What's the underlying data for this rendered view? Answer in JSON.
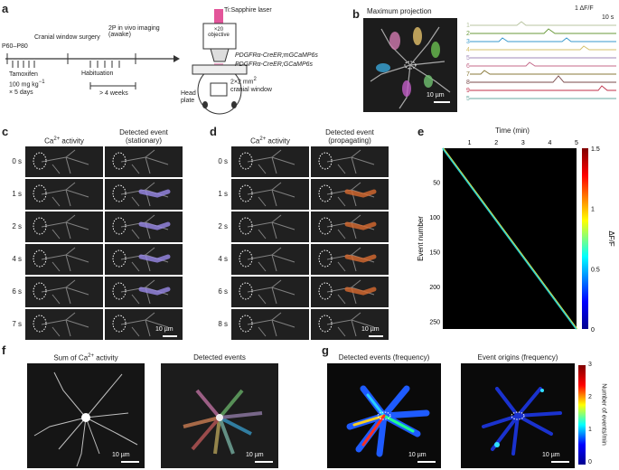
{
  "panels": {
    "a": {
      "label": "a",
      "age": "P60–P80",
      "surgery": "Cranial window surgery",
      "imaging": "2P in vivo imaging (awake)",
      "tamoxifen": "Tamoxifen",
      "dose": "100 mg kg",
      "dose_exp": "−1",
      "days": "× 5 days",
      "habituation": "Habituation",
      "duration": "> 4 weeks",
      "laser": "Ti:Sapphire laser",
      "objective": "×20 objective",
      "mouse1": "PDGFRα-CreER;mGCaMP6s",
      "mouse2": "PDGFRα-CreER;GCaMP6s",
      "window": "2×2 mm",
      "window_exp": "2",
      "window2": "cranial window",
      "head_plate": "Head plate"
    },
    "b": {
      "label": "b",
      "title": "Maximum projection",
      "scale_text": "10 µm",
      "dff_label": "1 ΔF/F",
      "time_label": "10 s",
      "traces": [
        {
          "num": "1",
          "color": "#b8c4a0"
        },
        {
          "num": "2",
          "color": "#6a9a3a"
        },
        {
          "num": "3",
          "color": "#3a9acd"
        },
        {
          "num": "4",
          "color": "#d4c06a"
        },
        {
          "num": "5",
          "color": "#a088b8"
        },
        {
          "num": "6",
          "color": "#c46a8a"
        },
        {
          "num": "7",
          "color": "#8a7a3a"
        },
        {
          "num": "8",
          "color": "#7a4a4a"
        },
        {
          "num": "9",
          "color": "#c0304a"
        },
        {
          "num": "5",
          "color": "#6aa8a0"
        }
      ]
    },
    "c": {
      "label": "c",
      "col1": "Ca",
      "col1_sup": "2+",
      "col1_rest": " activity",
      "col2": "Detected event",
      "col2b": "(stationary)",
      "times": [
        "0 s",
        "1 s",
        "2 s",
        "4 s",
        "6 s",
        "7 s"
      ],
      "scale_text": "10 µm"
    },
    "d": {
      "label": "d",
      "col1": "Ca",
      "col1_sup": "2+",
      "col1_rest": " activity",
      "col2": "Detected event",
      "col2b": "(propagating)",
      "times": [
        "0 s",
        "1 s",
        "2 s",
        "4 s",
        "6 s",
        "8 s"
      ],
      "scale_text": "10 µm"
    },
    "e": {
      "label": "e",
      "xlabel": "Time (min)",
      "xticks": [
        "1",
        "2",
        "3",
        "4",
        "5"
      ],
      "ylabel": "Event number",
      "yticks": [
        "50",
        "100",
        "150",
        "200",
        "250"
      ],
      "cbar_label": "ΔF/F",
      "cbar_ticks": [
        "1.5",
        "1",
        "0.5",
        "0"
      ]
    },
    "f": {
      "label": "f",
      "title1": "Sum of Ca",
      "title1_sup": "2+",
      "title1_rest": " activity",
      "title2": "Detected events",
      "scale_text": "10 µm"
    },
    "g": {
      "label": "g",
      "title1": "Detected events (frequency)",
      "title2": "Event origins (frequency)",
      "scale_text": "10 µm",
      "cbar_label": "Number of events/min",
      "cbar_ticks": [
        "3",
        "2",
        "1",
        "0"
      ]
    }
  },
  "chart_data": {
    "type": "heatmap",
    "title": "",
    "xlabel": "Time (min)",
    "ylabel": "Event number",
    "xlim": [
      0,
      5
    ],
    "ylim": [
      0,
      260
    ],
    "colorbar": {
      "label": "ΔF/F",
      "range": [
        0,
        1.5
      ]
    },
    "series": [
      {
        "x": [
          0,
          5
        ],
        "y": [
          0,
          260
        ]
      }
    ]
  }
}
